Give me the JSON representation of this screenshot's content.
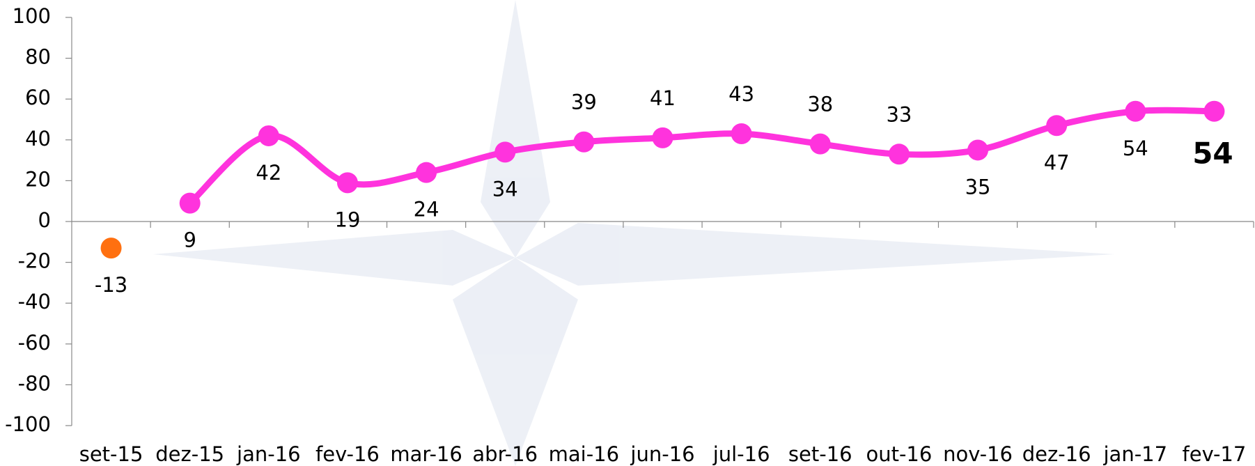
{
  "chart_data": {
    "type": "line",
    "categories": [
      "set-15",
      "dez-15",
      "jan-16",
      "fev-16",
      "mar-16",
      "abr-16",
      "mai-16",
      "jun-16",
      "jul-16",
      "set-16",
      "out-16",
      "nov-16",
      "dez-16",
      "jan-17",
      "fev-17"
    ],
    "series": [
      {
        "color": "#ff7010",
        "values": [
          -13,
          null,
          null,
          null,
          null,
          null,
          null,
          null,
          null,
          null,
          null,
          null,
          null,
          null,
          null
        ]
      },
      {
        "color": "#ff33dd",
        "values": [
          null,
          9,
          42,
          19,
          24,
          34,
          39,
          41,
          43,
          38,
          33,
          35,
          47,
          54,
          54
        ]
      }
    ],
    "ylim": [
      -100,
      100
    ],
    "yticks": [
      -100,
      -80,
      -60,
      -40,
      -20,
      0,
      20,
      40,
      60,
      80,
      100
    ],
    "grid": false
  }
}
